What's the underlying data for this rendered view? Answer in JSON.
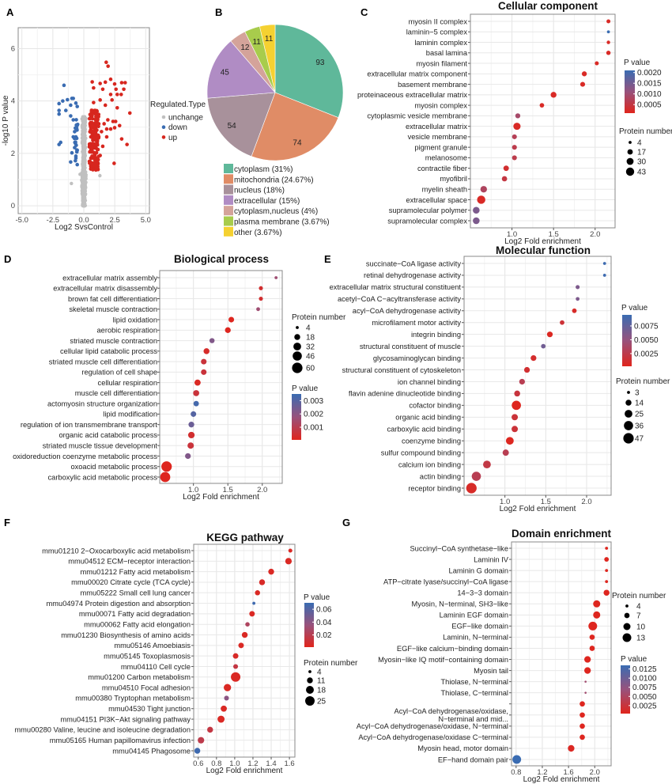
{
  "panels": [
    "A",
    "B",
    "C",
    "D",
    "E",
    "F",
    "G"
  ],
  "colors": {
    "p_low": "#e0251c",
    "p_mid": "#98527c",
    "p_high": "#3a6cb2",
    "up": "#d7261e",
    "down": "#3a6cb2",
    "unchange": "#c0c0c0"
  },
  "chart_data": [
    {
      "id": "A",
      "type": "scatter",
      "title": "",
      "xlabel": "Log2 SvsControl",
      "ylabel": "-log10 P value",
      "xlim": [
        -5.3,
        5.3
      ],
      "ylim": [
        -0.3,
        6.8
      ],
      "xticks": [
        -5,
        -2.5,
        0,
        2.5,
        5
      ],
      "xtick_labels": [
        "-5.0",
        "-2.5",
        "0.0",
        "2.5",
        "5.0"
      ],
      "yticks": [
        0,
        2,
        4,
        6
      ],
      "ytick_labels": [
        "0",
        "2",
        "4",
        "6"
      ],
      "legend": {
        "title": "Regulated.Type",
        "items": [
          {
            "label": "unchange",
            "key": "unchange"
          },
          {
            "label": "down",
            "key": "down"
          },
          {
            "label": "up",
            "key": "up"
          }
        ]
      },
      "down": [
        [
          -1.6,
          4.6
        ],
        [
          -1.7,
          4.0
        ],
        [
          -2.0,
          3.9
        ],
        [
          -2.0,
          3.64
        ],
        [
          -2.0,
          3.5
        ],
        [
          -1.32,
          4.05
        ],
        [
          -0.96,
          4.1
        ],
        [
          -0.85,
          4.1
        ],
        [
          -1.06,
          3.84
        ],
        [
          -0.64,
          3.92
        ],
        [
          -0.53,
          3.79
        ],
        [
          -1.06,
          3.43
        ],
        [
          -0.85,
          3.28
        ],
        [
          -2.0,
          2.34
        ],
        [
          -1.87,
          2.42
        ],
        [
          -0.96,
          2.02
        ],
        [
          -0.74,
          2.22
        ],
        [
          -0.64,
          2.63
        ],
        [
          -0.74,
          2.83
        ],
        [
          -1.06,
          1.67
        ],
        [
          -0.64,
          1.82
        ],
        [
          -0.53,
          1.57
        ],
        [
          -0.6,
          3.08
        ],
        [
          -0.72,
          2.42
        ],
        [
          -0.85,
          2.63
        ],
        [
          -0.53,
          2.12
        ],
        [
          -0.68,
          1.72
        ],
        [
          -1.45,
          3.64
        ]
      ],
      "up": [
        [
          1.81,
          5.48
        ],
        [
          1.96,
          5.33
        ],
        [
          0.68,
          4.73
        ],
        [
          1.32,
          4.67
        ],
        [
          1.74,
          4.72
        ],
        [
          2.17,
          4.83
        ],
        [
          2.49,
          4.65
        ],
        [
          3.06,
          4.7
        ],
        [
          3.34,
          4.7
        ],
        [
          2.6,
          4.45
        ],
        [
          3.23,
          4.45
        ],
        [
          3.02,
          4.25
        ],
        [
          2.7,
          4.25
        ],
        [
          2.17,
          4.25
        ],
        [
          1.53,
          4.45
        ],
        [
          0.79,
          4.5
        ],
        [
          3.72,
          3.54
        ],
        [
          2.7,
          3.74
        ],
        [
          2.28,
          4.04
        ],
        [
          1.74,
          3.84
        ],
        [
          1.32,
          4.04
        ],
        [
          2.89,
          3.06
        ],
        [
          2.36,
          3.22
        ],
        [
          2.57,
          3.22
        ],
        [
          1.94,
          3.28
        ],
        [
          3.06,
          2.55
        ],
        [
          3.49,
          2.34
        ],
        [
          2.45,
          1.62
        ],
        [
          1.85,
          2.93
        ],
        [
          2.17,
          2.93
        ],
        [
          2.49,
          2.98
        ],
        [
          1.85,
          2.63
        ],
        [
          1.53,
          2.27
        ],
        [
          1.32,
          1.92
        ],
        [
          1.11,
          1.49
        ],
        [
          0.9,
          1.62
        ],
        [
          0.57,
          1.41
        ],
        [
          1.0,
          2.02
        ],
        [
          0.68,
          2.22
        ],
        [
          1.21,
          2.63
        ],
        [
          0.57,
          2.63
        ],
        [
          0.79,
          3.03
        ],
        [
          1.11,
          3.33
        ],
        [
          0.57,
          3.43
        ],
        [
          0.9,
          3.64
        ],
        [
          1.21,
          3.13
        ],
        [
          0.57,
          1.82
        ],
        [
          1.43,
          2.83
        ],
        [
          1.64,
          3.13
        ],
        [
          0.79,
          3.94
        ]
      ]
    },
    {
      "id": "B",
      "type": "pie",
      "title": "",
      "categories": [
        "cytoplasm (31%)",
        "mitochondria (24.67%)",
        "nucleus (18%)",
        "extracellular (15%)",
        "cytoplasm,nucleus (4%)",
        "plasma membrane (3.67%)",
        "other (3.67%)"
      ],
      "values": [
        93,
        74,
        54,
        45,
        12,
        11,
        11
      ],
      "colors": [
        "#5fb89a",
        "#e08c66",
        "#a8919b",
        "#b08cc4",
        "#d4a39a",
        "#a8cc4c",
        "#f5d131"
      ]
    },
    {
      "id": "C",
      "type": "scatter",
      "title": "Cellular component",
      "xlabel": "Log2 Fold enrichment",
      "xlim": [
        0.5,
        2.24
      ],
      "xticks": [
        1.0,
        1.5,
        2.0
      ],
      "xtick_labels": [
        "1.0",
        "1.5",
        "2.0"
      ],
      "p_legend": {
        "title": "P value",
        "range": [
          0.0001,
          0.0021
        ],
        "ticks": [
          0.002,
          0.0015,
          0.001,
          0.0005
        ],
        "tick_labels": [
          "0.0020",
          "0.0015",
          "0.0010",
          "0.0005"
        ]
      },
      "size_legend": {
        "title": "Protein number",
        "values": [
          4,
          17,
          30,
          43
        ]
      },
      "terms": [
        "myosin II complex",
        "laminin−5 complex",
        "laminin complex",
        "basal lamina",
        "myosin filament",
        "extracellular matrix component",
        "basement membrane",
        "proteinaceous extracellular matrix",
        "myosin complex",
        "cytoplasmic vesicle membrane",
        "extracellular matrix",
        "vesicle membrane",
        "pigment granule",
        "melanosome",
        "contractile fiber",
        "myofibril",
        "myelin sheath",
        "extracellular space",
        "supramolecular polymer",
        "supramolecular complex"
      ],
      "x": [
        2.16,
        2.16,
        2.16,
        2.16,
        2.02,
        1.87,
        1.85,
        1.5,
        1.36,
        1.07,
        1.06,
        1.03,
        1.03,
        1.03,
        0.93,
        0.91,
        0.66,
        0.63,
        0.57,
        0.57
      ],
      "p": [
        0.0002,
        0.0021,
        0.0002,
        0.0002,
        0.0002,
        0.0002,
        0.0002,
        0.0002,
        0.0002,
        0.0009,
        0.0002,
        0.0007,
        0.0006,
        0.0006,
        0.0003,
        0.0005,
        0.0008,
        0.0002,
        0.0014,
        0.0014
      ],
      "n": [
        8,
        4,
        6,
        10,
        8,
        14,
        13,
        20,
        11,
        14,
        32,
        13,
        13,
        13,
        17,
        16,
        26,
        43,
        28,
        28
      ]
    },
    {
      "id": "D",
      "type": "scatter",
      "title": "Biological process",
      "xlabel": "Log2 Fold enrichment",
      "xlim": [
        0.51,
        2.29
      ],
      "xticks": [
        1.0,
        1.5,
        2.0
      ],
      "xtick_labels": [
        "1.0",
        "1.5",
        "2.0"
      ],
      "p_legend": {
        "title": "P value",
        "range": [
          5e-05,
          0.0035
        ],
        "ticks": [
          0.003,
          0.002,
          0.001
        ],
        "tick_labels": [
          "0.003",
          "0.002",
          "0.001"
        ]
      },
      "size_legend": {
        "title": "Protein number",
        "values": [
          4,
          18,
          32,
          46,
          60
        ]
      },
      "terms": [
        "extracellular matrix assembly",
        "extracellular matrix disassembly",
        "brown fat cell differentiation",
        "skeletal muscle contraction",
        "lipid oxidation",
        "aerobic respiration",
        "striated muscle contraction",
        "cellular lipid catabolic process",
        "striated muscle cell differentiation",
        "regulation of cell shape",
        "cellular respiration",
        "muscle cell differentiation",
        "actomyosin structure organization",
        "lipid modification",
        "regulation of ion transmembrane transport",
        "organic acid catabolic process",
        "striated muscle tissue development",
        "oxidoreduction coenzyme metabolic process",
        "oxoacid metabolic process",
        "carboxylic acid metabolic process"
      ],
      "x": [
        2.2,
        1.98,
        1.98,
        1.94,
        1.55,
        1.5,
        1.27,
        1.19,
        1.15,
        1.15,
        1.06,
        1.04,
        1.04,
        1.0,
        0.97,
        0.97,
        0.96,
        0.92,
        0.61,
        0.59
      ],
      "p": [
        0.0016,
        0.0004,
        0.0004,
        0.0016,
        0.0001,
        0.0001,
        0.0022,
        0.0003,
        0.0006,
        0.0006,
        0.0002,
        0.0006,
        0.0033,
        0.003,
        0.0026,
        0.0004,
        0.0006,
        0.0022,
        0.0001,
        0.0001
      ],
      "n": [
        4,
        8,
        8,
        7,
        16,
        17,
        13,
        18,
        16,
        16,
        20,
        19,
        15,
        16,
        17,
        22,
        21,
        17,
        60,
        56
      ]
    },
    {
      "id": "E",
      "type": "scatter",
      "title": "Molecular function",
      "xlabel": "Log2 Fold enrichment",
      "xlim": [
        0.5,
        2.3
      ],
      "xticks": [
        1.0,
        1.5,
        2.0
      ],
      "xtick_labels": [
        "1.0",
        "1.5",
        "2.0"
      ],
      "p_legend": {
        "title": "P value",
        "range": [
          0.0002,
          0.0095
        ],
        "ticks": [
          0.0075,
          0.005,
          0.0025
        ],
        "tick_labels": [
          "0.0075",
          "0.0050",
          "0.0025"
        ]
      },
      "size_legend": {
        "title": "Protein number",
        "values": [
          3,
          14,
          25,
          36,
          47
        ]
      },
      "terms": [
        "succinate−CoA ligase activity",
        "retinal dehydrogenase activity",
        "extracellular matrix structural constituent",
        "acetyl−CoA C−acyltransferase activity",
        "acyl−CoA dehydrogenase activity",
        "microfilament motor activity",
        "integrin binding",
        "structural constituent of muscle",
        "glycosaminoglycan binding",
        "structural constituent of cytoskeleton",
        "ion channel binding",
        "flavin adenine dinucleotide binding",
        "cofactor binding",
        "organic acid binding",
        "carboxylic acid binding",
        "coenzyme binding",
        "sulfur compound binding",
        "calcium ion binding",
        "actin binding",
        "receptor binding"
      ],
      "x": [
        2.22,
        2.22,
        1.89,
        1.89,
        1.85,
        1.7,
        1.55,
        1.47,
        1.35,
        1.27,
        1.21,
        1.15,
        1.14,
        1.12,
        1.12,
        1.06,
        1.01,
        0.78,
        0.65,
        0.59
      ],
      "p": [
        0.0093,
        0.0093,
        0.0062,
        0.0062,
        0.0008,
        0.0015,
        0.0005,
        0.0068,
        0.001,
        0.0012,
        0.0028,
        0.0018,
        0.0003,
        0.0016,
        0.0016,
        0.0004,
        0.0028,
        0.0022,
        0.0028,
        0.0008
      ],
      "n": [
        3,
        3,
        6,
        5,
        8,
        8,
        13,
        8,
        13,
        13,
        13,
        14,
        36,
        16,
        16,
        25,
        16,
        25,
        36,
        47
      ]
    },
    {
      "id": "F",
      "type": "scatter",
      "title": "KEGG pathway",
      "xlabel": "Log2 Fold enrichment",
      "xlim": [
        0.55,
        1.66
      ],
      "xticks": [
        0.6,
        0.8,
        1.0,
        1.2,
        1.4,
        1.6
      ],
      "xtick_labels": [
        "0.6",
        "0.8",
        "1.0",
        "1.2",
        "1.4",
        "1.6"
      ],
      "p_legend": {
        "title": "P value",
        "range": [
          0.001,
          0.07
        ],
        "ticks": [
          0.06,
          0.04,
          0.02
        ],
        "tick_labels": [
          "0.06",
          "0.04",
          "0.02"
        ]
      },
      "size_legend": {
        "title": "Protein number",
        "values": [
          4,
          11,
          18,
          25
        ]
      },
      "terms": [
        "mmu01210 2−Oxocarboxylic acid metabolism",
        "mmu04512 ECM−receptor interaction",
        "mmu01212 Fatty acid metabolism",
        "mmu00020 Citrate cycle (TCA cycle)",
        "mmu05222 Small cell lung cancer",
        "mmu04974 Protein digestion and absorption",
        "mmu00071 Fatty acid degradation",
        "mmu00062 Fatty acid elongation",
        "mmu01230 Biosynthesis of amino acids",
        "mmu05146 Amoebiasis",
        "mmu05145 Toxoplasmosis",
        "mmu04110 Cell cycle",
        "mmu01200 Carbon metabolism",
        "mmu04510 Focal adhesion",
        "mmu00380 Tryptophan metabolism",
        "mmu04530 Tight junction",
        "mmu04151 PI3K−Akt signaling pathway",
        "mmu00280 Valine, leucine and isoleucine degradation",
        "mmu05165 Human papillomavirus infection",
        "mmu04145 Phagosome"
      ],
      "x": [
        1.61,
        1.59,
        1.4,
        1.3,
        1.25,
        1.21,
        1.19,
        1.14,
        1.11,
        1.07,
        1.01,
        1.01,
        1.01,
        0.92,
        0.91,
        0.88,
        0.85,
        0.73,
        0.63,
        0.59
      ],
      "p": [
        0.004,
        0.004,
        0.004,
        0.005,
        0.004,
        0.068,
        0.004,
        0.025,
        0.004,
        0.004,
        0.005,
        0.015,
        0.004,
        0.004,
        0.04,
        0.004,
        0.004,
        0.015,
        0.018,
        0.068
      ],
      "n": [
        6,
        13,
        11,
        11,
        9,
        4,
        10,
        7,
        11,
        10,
        10,
        8,
        25,
        16,
        8,
        12,
        15,
        11,
        13,
        11
      ]
    },
    {
      "id": "G",
      "type": "scatter",
      "title": "Domain enrichment",
      "xlabel": "Log2 Fold enrichment",
      "xlim": [
        0.73,
        2.25
      ],
      "xticks": [
        0.8,
        1.2,
        1.6,
        2.0
      ],
      "xtick_labels": [
        "0.8",
        "1.2",
        "1.6",
        "2.0"
      ],
      "p_legend": {
        "title": "P value",
        "range": [
          0.0003,
          0.0135
        ],
        "ticks": [
          0.0125,
          0.01,
          0.0075,
          0.005,
          0.0025
        ],
        "tick_labels": [
          "0.0125",
          "0.0100",
          "0.0075",
          "0.0050",
          "0.0025"
        ]
      },
      "size_legend": {
        "title": "Protein number",
        "values": [
          4,
          7,
          10,
          13
        ]
      },
      "terms": [
        "Succinyl−CoA synthetase−like",
        "Laminin IV",
        "Laminin G domain",
        "ATP−citrate lyase/succinyl−CoA ligase",
        "14−3−3 domain",
        "Myosin, N−terminal, SH3−like",
        "Laminin EGF domain",
        "EGF−like domain",
        "Laminin, N−terminal",
        "EGF−like calcium−binding domain",
        "Myosin−like IQ motif−containing domain",
        "Myosin tail",
        "Thiolase, N−terminal",
        "Thiolase, C−terminal",
        "",
        "Acyl−CoA dehydrogenase/oxidase,\nN−terminal and mid...",
        "Acyl−CoA dehydrogenase/oxidase, N−terminal",
        "Acyl−CoA dehydrogenase/oxidase C−terminal",
        "Myosin head, motor domain",
        "EF−hand domain pair"
      ],
      "x": [
        2.18,
        2.18,
        2.18,
        2.18,
        2.18,
        2.03,
        2.03,
        1.97,
        1.96,
        1.96,
        1.89,
        1.89,
        1.86,
        1.86,
        1.81,
        1.81,
        1.81,
        1.81,
        1.64,
        0.81
      ],
      "p": [
        0.0005,
        0.0005,
        0.0005,
        0.0005,
        0.0005,
        0.0005,
        0.0005,
        0.0005,
        0.0005,
        0.0005,
        0.0005,
        0.0005,
        0.006,
        0.006,
        0.0005,
        0.0005,
        0.0005,
        0.0005,
        0.0008,
        0.0135
      ],
      "n": [
        4,
        6,
        4,
        4,
        8,
        10,
        10,
        13,
        7,
        7,
        9,
        9,
        3,
        3,
        7,
        7,
        7,
        7,
        9,
        13
      ]
    }
  ]
}
